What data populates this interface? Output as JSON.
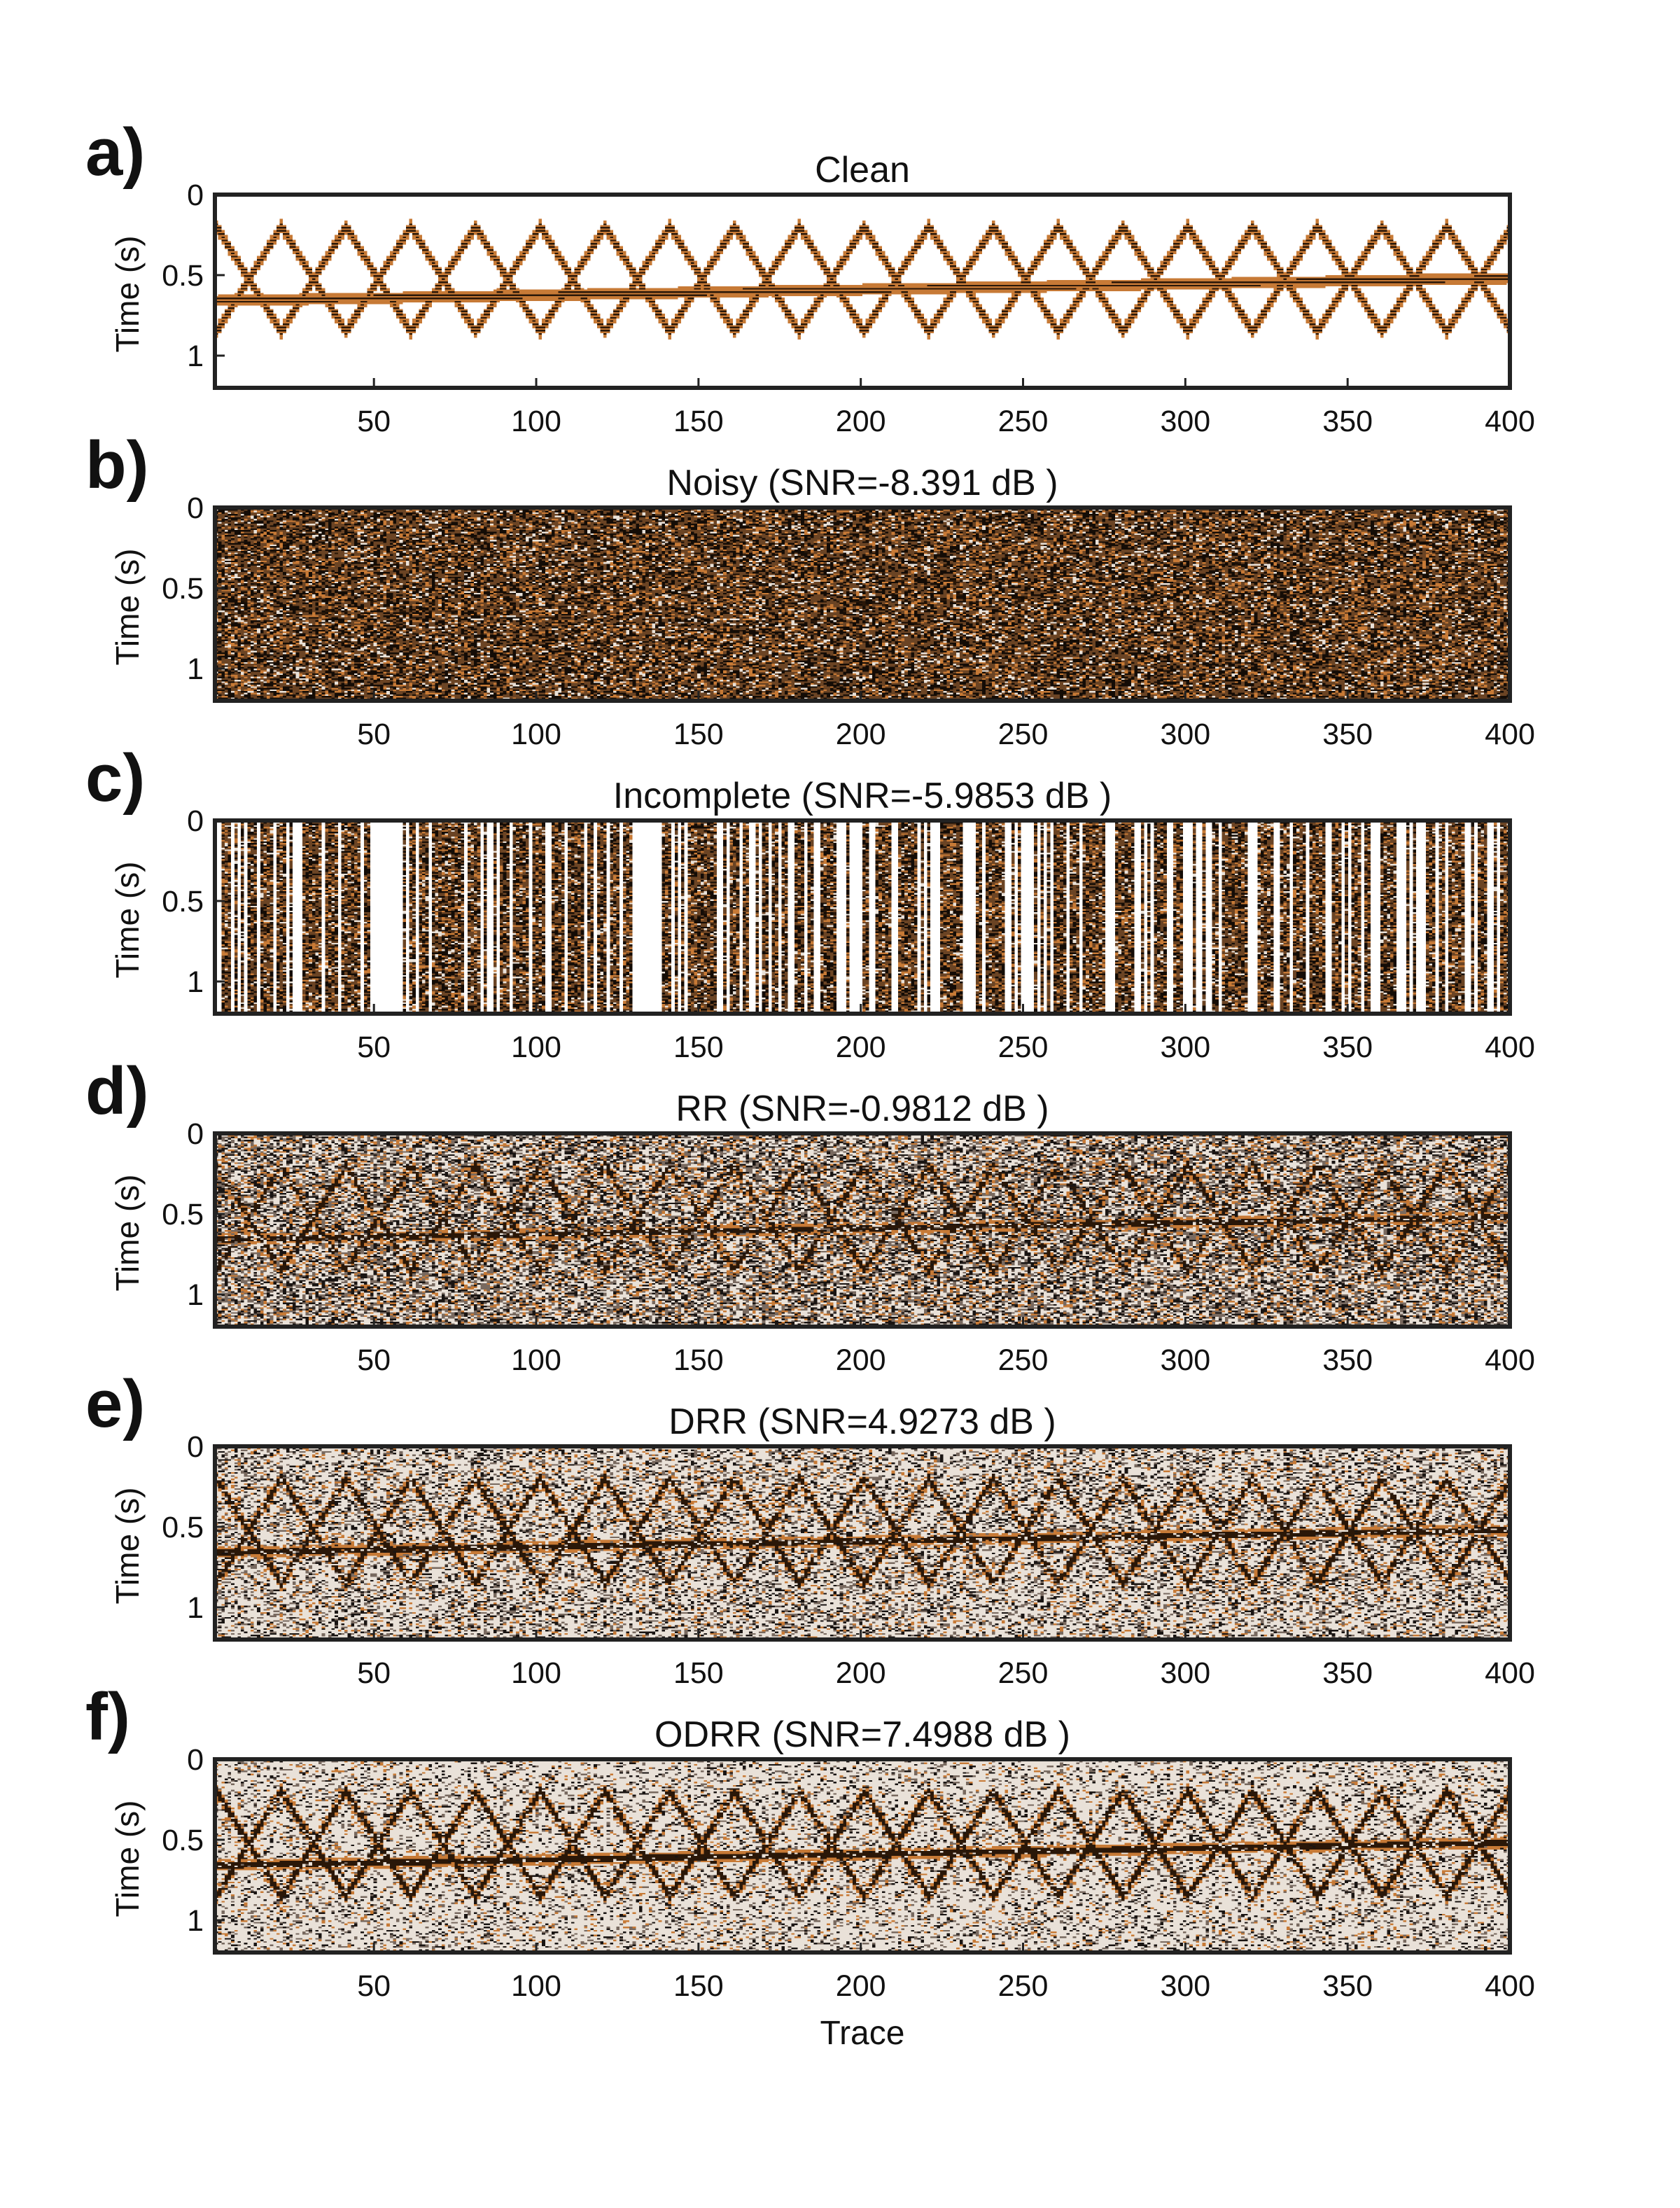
{
  "colors": {
    "background": "#ffffff",
    "axes": "#222222",
    "event_dark": "#2a1708",
    "event_orange": "#c77a36",
    "noise_brown": "#6b4424",
    "noise_light": "#e9e1d8"
  },
  "x_axis_label": "Trace",
  "chart_data": [
    {
      "type": "heatmap",
      "panel_label": "a)",
      "title": "Clean",
      "ylabel": "Time (s)",
      "xlabel": "",
      "xlim": [
        1,
        400
      ],
      "ylim": [
        0,
        1.2
      ],
      "y_reversed": true,
      "x_ticks": [
        50,
        100,
        150,
        200,
        250,
        300,
        350,
        400
      ],
      "y_ticks": [
        0,
        0.5,
        1
      ],
      "snr_db": null,
      "noise_level": 0,
      "dataset": "clean"
    },
    {
      "type": "heatmap",
      "panel_label": "b)",
      "title": "Noisy (SNR=-8.391 dB )",
      "ylabel": "Time (s)",
      "xlabel": "",
      "xlim": [
        1,
        400
      ],
      "ylim": [
        0,
        1.2
      ],
      "y_reversed": true,
      "x_ticks": [
        50,
        100,
        150,
        200,
        250,
        300,
        350,
        400
      ],
      "y_ticks": [
        0,
        0.5,
        1
      ],
      "snr_db": -8.391,
      "noise_level": 0.95,
      "dataset": "noisy"
    },
    {
      "type": "heatmap",
      "panel_label": "c)",
      "title": "Incomplete (SNR=-5.9853 dB )",
      "ylabel": "Time (s)",
      "xlabel": "",
      "xlim": [
        1,
        400
      ],
      "ylim": [
        0,
        1.2
      ],
      "y_reversed": true,
      "x_ticks": [
        50,
        100,
        150,
        200,
        250,
        300,
        350,
        400
      ],
      "y_ticks": [
        0,
        0.5,
        1
      ],
      "snr_db": -5.9853,
      "noise_level": 0.95,
      "dataset": "incomplete"
    },
    {
      "type": "heatmap",
      "panel_label": "d)",
      "title": "RR (SNR=-0.9812 dB )",
      "ylabel": "Time (s)",
      "xlabel": "",
      "xlim": [
        1,
        400
      ],
      "ylim": [
        0,
        1.2
      ],
      "y_reversed": true,
      "x_ticks": [
        50,
        100,
        150,
        200,
        250,
        300,
        350,
        400
      ],
      "y_ticks": [
        0,
        0.5,
        1
      ],
      "snr_db": -0.9812,
      "noise_level": 0.7,
      "dataset": "rr"
    },
    {
      "type": "heatmap",
      "panel_label": "e)",
      "title": "DRR (SNR=4.9273 dB )",
      "ylabel": "Time (s)",
      "xlabel": "",
      "xlim": [
        1,
        400
      ],
      "ylim": [
        0,
        1.2
      ],
      "y_reversed": true,
      "x_ticks": [
        50,
        100,
        150,
        200,
        250,
        300,
        350,
        400
      ],
      "y_ticks": [
        0,
        0.5,
        1
      ],
      "snr_db": 4.9273,
      "noise_level": 0.45,
      "dataset": "drr"
    },
    {
      "type": "heatmap",
      "panel_label": "f)",
      "title": "ODRR (SNR=7.4988 dB )",
      "ylabel": "Time (s)",
      "xlabel": "Trace",
      "xlim": [
        1,
        400
      ],
      "ylim": [
        0,
        1.2
      ],
      "y_reversed": true,
      "x_ticks": [
        50,
        100,
        150,
        200,
        250,
        300,
        350,
        400
      ],
      "y_ticks": [
        0,
        0.5,
        1
      ],
      "snr_db": 7.4988,
      "noise_level": 0.3,
      "dataset": "odrr"
    }
  ]
}
